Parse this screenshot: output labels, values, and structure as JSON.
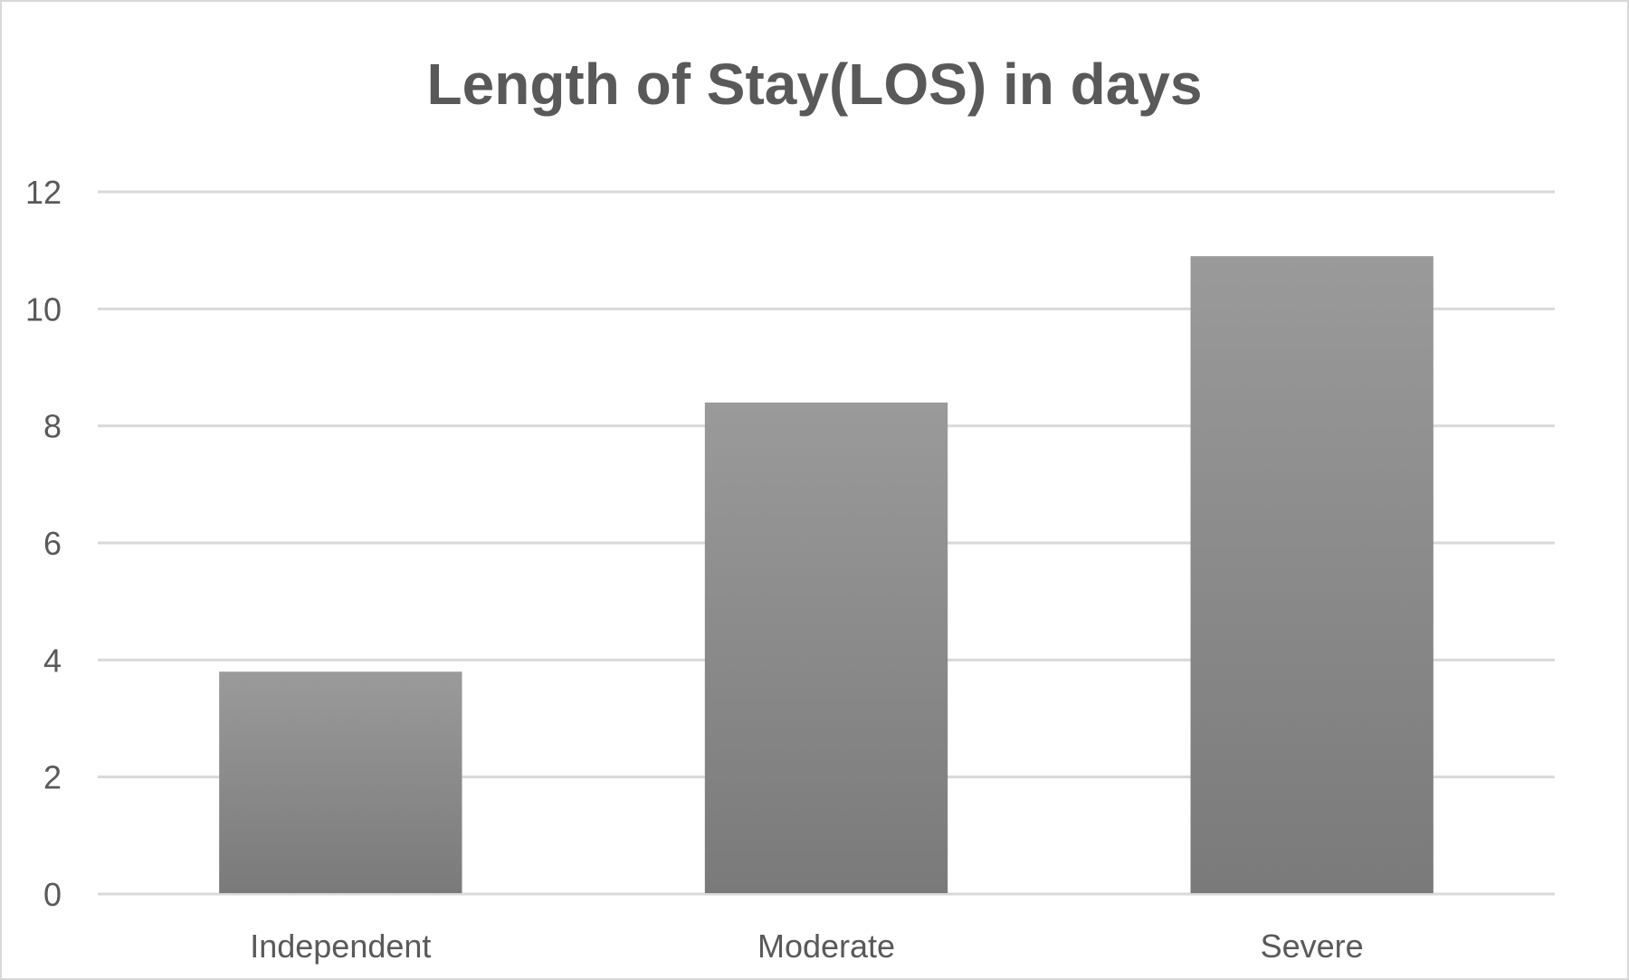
{
  "chart_data": {
    "type": "bar",
    "title": "Length of Stay(LOS) in days",
    "xlabel": "",
    "ylabel": "",
    "categories": [
      "Independent",
      "Moderate",
      "Severe"
    ],
    "values": [
      3.8,
      8.4,
      10.9
    ],
    "ylim": [
      0,
      12
    ],
    "yticks": [
      0,
      2,
      4,
      6,
      8,
      10,
      12
    ],
    "ytick_labels": [
      "0",
      "2",
      "4",
      "6",
      "8",
      "10",
      "12"
    ],
    "grid": true,
    "legend": "none",
    "bar_color": "#8a8a8a"
  }
}
